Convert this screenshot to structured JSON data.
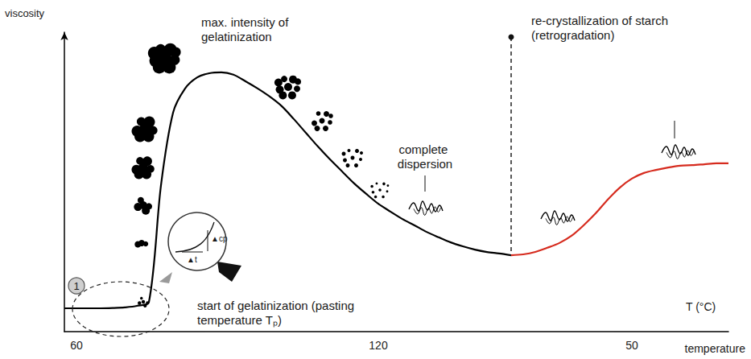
{
  "chart_data": {
    "type": "line",
    "y_label": "viscosity",
    "x_label": "temperature",
    "x_axis_title": "T (°C)",
    "categories": [
      null,
      "60",
      null,
      null,
      null,
      null,
      null,
      null,
      null,
      null,
      null,
      null,
      null,
      null,
      null,
      null,
      null,
      null,
      null,
      null,
      null,
      null,
      null,
      null,
      null,
      null,
      "120",
      null,
      null,
      null,
      null,
      null,
      null,
      null,
      null,
      null,
      null,
      null,
      null,
      null,
      null,
      null,
      null,
      null,
      null,
      null,
      null,
      "50",
      null,
      null,
      null,
      null,
      null,
      null,
      null,
      null
    ],
    "series": [
      {
        "color": "#000000",
        "line_style": "solid",
        "marker": "none",
        "values": [
          7.8,
          7.8,
          7.8,
          7.8,
          7.9,
          8.1,
          8.6,
          9.9,
          48.9,
          73.1,
          81.2,
          84.9,
          86.3,
          86.6,
          85.8,
          83.6,
          81.2,
          78.5,
          75.3,
          71.0,
          66.4,
          61.8,
          57.5,
          53.5,
          49.5,
          46.0,
          42.7,
          40.1,
          37.6,
          35.5,
          33.3,
          31.5,
          29.8,
          28.5,
          27.4,
          26.6,
          26.1,
          25.5,
          null,
          null,
          null,
          null,
          null,
          null,
          null,
          null,
          null,
          null,
          null,
          null,
          null,
          null,
          null,
          null,
          null,
          null
        ]
      },
      {
        "color": "#d62b1e",
        "line_style": "solid",
        "marker": "none",
        "values": [
          null,
          null,
          null,
          null,
          null,
          null,
          null,
          null,
          null,
          null,
          null,
          null,
          null,
          null,
          null,
          null,
          null,
          null,
          null,
          null,
          null,
          null,
          null,
          null,
          null,
          null,
          null,
          null,
          null,
          null,
          null,
          null,
          null,
          null,
          null,
          null,
          null,
          25.5,
          25.8,
          26.6,
          28.0,
          29.6,
          32.0,
          35.5,
          39.5,
          44.1,
          48.1,
          51.1,
          53.0,
          54.0,
          54.8,
          55.4,
          55.6,
          55.9,
          56.2,
          56.2
        ]
      }
    ],
    "ylim": [
      0,
      100
    ],
    "yticks": [],
    "tick_labels": "x",
    "grid": false,
    "annotations": [
      "max. intensity of gelatinization",
      "re-crystallization of starch (retrogradation)",
      "complete dispersion",
      "start of gelatinization (pasting temperature Tₚ)",
      "1",
      "▲cp",
      "▲t"
    ]
  }
}
